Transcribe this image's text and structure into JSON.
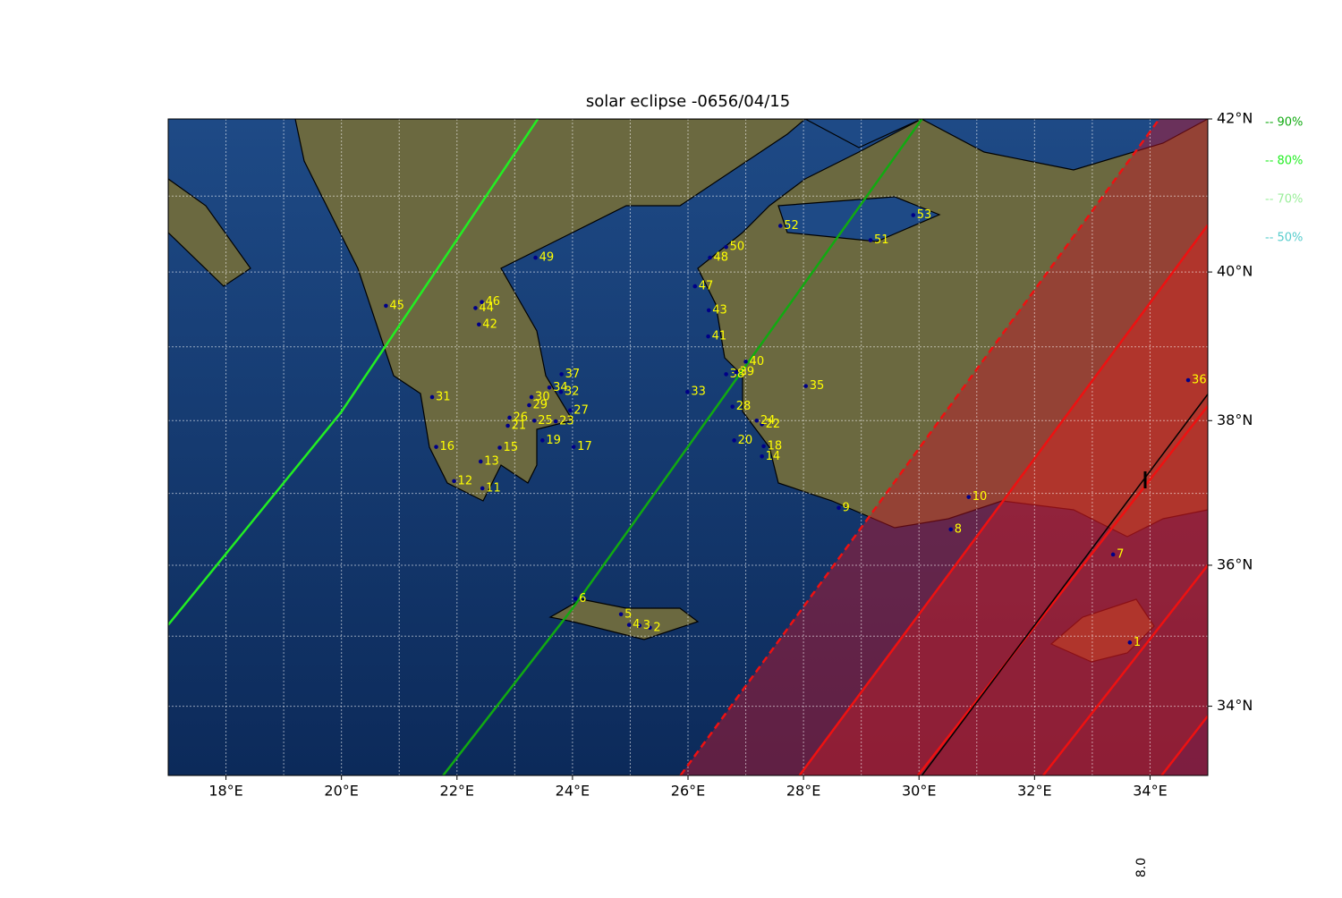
{
  "chart_data": {
    "type": "map",
    "title": "solar eclipse -0656/04/15",
    "xlim": [
      17,
      35
    ],
    "ylim": [
      33,
      42
    ],
    "xticks": [
      {
        "value": 18,
        "label": "18°E"
      },
      {
        "value": 20,
        "label": "20°E"
      },
      {
        "value": 22,
        "label": "22°E"
      },
      {
        "value": 24,
        "label": "24°E"
      },
      {
        "value": 26,
        "label": "26°E"
      },
      {
        "value": 28,
        "label": "28°E"
      },
      {
        "value": 30,
        "label": "30°E"
      },
      {
        "value": 32,
        "label": "32°E"
      },
      {
        "value": 34,
        "label": "34°E"
      }
    ],
    "yticks": [
      {
        "value": 34,
        "label": "34°N"
      },
      {
        "value": 36,
        "label": "36°N"
      },
      {
        "value": 38,
        "label": "38°N"
      },
      {
        "value": 40,
        "label": "40°N"
      },
      {
        "value": 42,
        "label": "42°N"
      }
    ],
    "xgrid": [
      17,
      18,
      19,
      20,
      21,
      22,
      23,
      24,
      25,
      26,
      27,
      28,
      29,
      30,
      31,
      32,
      33,
      34,
      35
    ],
    "ygrid": [
      33,
      34,
      35,
      36,
      37,
      38,
      39,
      40,
      41,
      42
    ],
    "grid": true,
    "lines": [
      {
        "color": "#22ee22",
        "dash": false,
        "lon": [
          17,
          20,
          23.4
        ],
        "lat": [
          35.16,
          38.12,
          42
        ]
      },
      {
        "color": "#11aa11",
        "dash": false,
        "lon": [
          21.76,
          24.0,
          30.05
        ],
        "lat": [
          33,
          35.39,
          42
        ]
      },
      {
        "color": "#ee1111",
        "dash": true,
        "lon": [
          25.87,
          34.16
        ],
        "lat": [
          33,
          42
        ]
      },
      {
        "color": "#ee1111",
        "dash": false,
        "lon": [
          27.93,
          35
        ],
        "lat": [
          33,
          40.62
        ]
      },
      {
        "color": "#ee1111",
        "dash": false,
        "lon": [
          29.98,
          35
        ],
        "lat": [
          33,
          38.2
        ]
      },
      {
        "color": "#000000",
        "dash": false,
        "lon": [
          30.05,
          35
        ],
        "lat": [
          33,
          38.36
        ]
      },
      {
        "color": "#ee1111",
        "dash": false,
        "lon": [
          32.15,
          35
        ],
        "lat": [
          33,
          36.0
        ]
      },
      {
        "color": "#ee1111",
        "dash": false,
        "lon": [
          34.2,
          35
        ],
        "lat": [
          33,
          33.86
        ]
      }
    ],
    "sites": {
      "dot_color": "#000088",
      "label_color": "#ffff00",
      "labels": [
        "1",
        "2",
        "3",
        "4",
        "5",
        "6",
        "7",
        "8",
        "9",
        "10",
        "11",
        "12",
        "13",
        "14",
        "15",
        "16",
        "17",
        "18",
        "19",
        "20",
        "21",
        "22",
        "23",
        "24",
        "25",
        "26",
        "27",
        "28",
        "29",
        "30",
        "31",
        "32",
        "33",
        "34",
        "35",
        "36",
        "37",
        "38",
        "39",
        "40",
        "41",
        "42",
        "43",
        "44",
        "45",
        "46",
        "47",
        "48",
        "49",
        "50",
        "51",
        "52",
        "53"
      ],
      "lon": [
        33.65,
        25.34,
        25.16,
        24.98,
        24.84,
        24.05,
        33.36,
        30.55,
        28.61,
        30.86,
        22.44,
        21.95,
        22.41,
        27.28,
        22.74,
        21.64,
        24.02,
        27.31,
        23.48,
        26.8,
        22.88,
        27.28,
        23.71,
        27.19,
        23.34,
        22.91,
        23.96,
        26.77,
        23.25,
        23.29,
        21.57,
        23.8,
        25.99,
        23.6,
        28.04,
        34.66,
        23.81,
        26.66,
        26.83,
        27.0,
        26.35,
        22.38,
        26.36,
        22.32,
        20.77,
        22.43,
        26.12,
        26.38,
        23.36,
        26.66,
        29.16,
        27.6,
        29.9
      ],
      "lat": [
        34.91,
        35.12,
        35.15,
        35.16,
        35.31,
        35.53,
        36.15,
        36.5,
        36.8,
        36.95,
        37.07,
        37.17,
        37.44,
        37.51,
        37.63,
        37.64,
        37.64,
        37.65,
        37.73,
        37.73,
        37.93,
        37.95,
        37.99,
        38.0,
        38.0,
        38.04,
        38.14,
        38.19,
        38.21,
        38.32,
        38.32,
        38.39,
        38.39,
        38.45,
        38.47,
        38.55,
        38.63,
        38.63,
        38.66,
        38.8,
        39.14,
        39.3,
        39.49,
        39.52,
        39.55,
        39.6,
        39.81,
        40.19,
        40.19,
        40.33,
        40.42,
        40.61,
        40.75
      ]
    },
    "legend": [
      {
        "text": "-- 90%",
        "color": "#11aa11"
      },
      {
        "text": "-- 80%",
        "color": "#22ee22"
      },
      {
        "text": "-- 70%",
        "color": "#99ee99"
      },
      {
        "text": "-- 50%",
        "color": "#55cccc"
      }
    ],
    "annotation": "8.0"
  }
}
